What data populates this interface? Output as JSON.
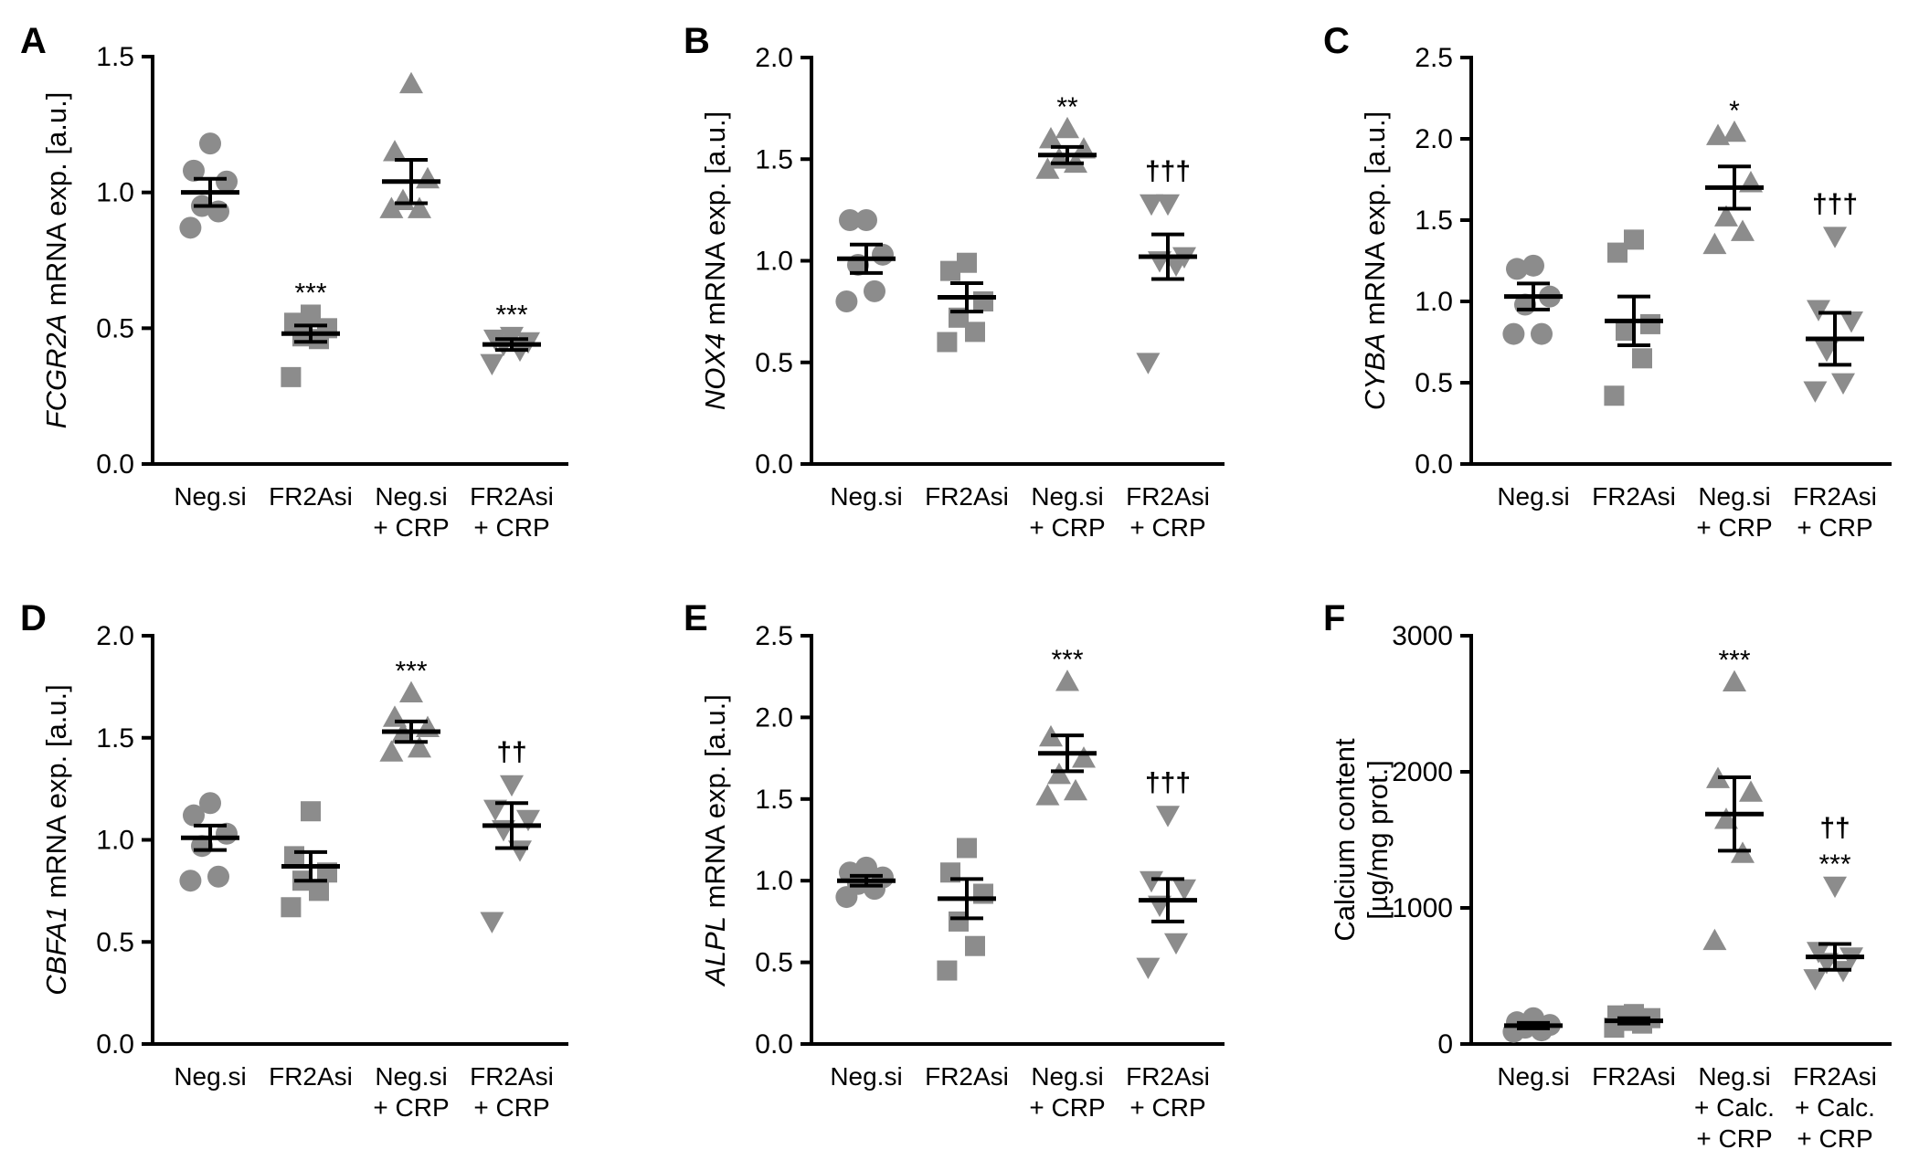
{
  "chart_data": [
    {
      "panel": "A",
      "type": "scatter",
      "ylabel": {
        "gene": "FCGR2A",
        "rest": " mRNA exp. [a.u.]"
      },
      "ylim": [
        0,
        1.5
      ],
      "yticks": [
        "0.0",
        "0.5",
        "1.0",
        "1.5"
      ],
      "categories": [
        [
          "Neg.si"
        ],
        [
          "FR2Asi"
        ],
        [
          "Neg.si",
          "+ CRP"
        ],
        [
          "FR2Asi",
          "+ CRP"
        ]
      ],
      "groups": [
        {
          "marker": "circle",
          "points": [
            1.18,
            1.08,
            1.04,
            0.95,
            0.93,
            0.87
          ],
          "mean": 1.0,
          "sem": 0.05,
          "sig": ""
        },
        {
          "marker": "square",
          "points": [
            0.55,
            0.52,
            0.5,
            0.47,
            0.46,
            0.32
          ],
          "mean": 0.48,
          "sem": 0.03,
          "sig": "***"
        },
        {
          "marker": "triangle-up",
          "points": [
            1.4,
            1.15,
            1.05,
            0.97,
            0.94,
            0.94
          ],
          "mean": 1.04,
          "sem": 0.08,
          "sig": ""
        },
        {
          "marker": "triangle-down",
          "points": [
            0.47,
            0.46,
            0.45,
            0.44,
            0.42,
            0.37
          ],
          "mean": 0.44,
          "sem": 0.02,
          "sig": "***"
        }
      ]
    },
    {
      "panel": "B",
      "type": "scatter",
      "ylabel": {
        "gene": "NOX4",
        "rest": " mRNA exp. [a.u.]"
      },
      "ylim": [
        0,
        2.0
      ],
      "yticks": [
        "0.0",
        "0.5",
        "1.0",
        "1.5",
        "2.0"
      ],
      "categories": [
        [
          "Neg.si"
        ],
        [
          "FR2Asi"
        ],
        [
          "Neg.si",
          "+ CRP"
        ],
        [
          "FR2Asi",
          "+ CRP"
        ]
      ],
      "groups": [
        {
          "marker": "circle",
          "points": [
            1.2,
            1.2,
            1.03,
            0.98,
            0.85,
            0.8
          ],
          "mean": 1.01,
          "sem": 0.07,
          "sig": ""
        },
        {
          "marker": "square",
          "points": [
            0.99,
            0.95,
            0.8,
            0.72,
            0.65,
            0.6
          ],
          "mean": 0.82,
          "sem": 0.07,
          "sig": ""
        },
        {
          "marker": "triangle-up",
          "points": [
            1.65,
            1.6,
            1.55,
            1.5,
            1.48,
            1.45
          ],
          "mean": 1.52,
          "sem": 0.04,
          "sig": "**"
        },
        {
          "marker": "triangle-down",
          "points": [
            1.28,
            1.28,
            1.02,
            1.0,
            0.98,
            0.5
          ],
          "mean": 1.02,
          "sem": 0.11,
          "sig": "†††"
        }
      ]
    },
    {
      "panel": "C",
      "type": "scatter",
      "ylabel": {
        "gene": "CYBA",
        "rest": " mRNA exp. [a.u.]"
      },
      "ylim": [
        0,
        2.5
      ],
      "yticks": [
        "0.0",
        "0.5",
        "1.0",
        "1.5",
        "2.0",
        "2.5"
      ],
      "categories": [
        [
          "Neg.si"
        ],
        [
          "FR2Asi"
        ],
        [
          "Neg.si",
          "+ CRP"
        ],
        [
          "FR2Asi",
          "+ CRP"
        ]
      ],
      "groups": [
        {
          "marker": "circle",
          "points": [
            1.22,
            1.2,
            1.03,
            0.98,
            0.8,
            0.8
          ],
          "mean": 1.03,
          "sem": 0.08,
          "sig": ""
        },
        {
          "marker": "square",
          "points": [
            1.38,
            1.3,
            0.86,
            0.82,
            0.65,
            0.42
          ],
          "mean": 0.88,
          "sem": 0.15,
          "sig": ""
        },
        {
          "marker": "triangle-up",
          "points": [
            2.04,
            2.02,
            1.73,
            1.52,
            1.43,
            1.35
          ],
          "mean": 1.7,
          "sem": 0.13,
          "sig": "*"
        },
        {
          "marker": "triangle-down",
          "points": [
            1.4,
            0.95,
            0.88,
            0.7,
            0.5,
            0.45
          ],
          "mean": 0.77,
          "sem": 0.16,
          "sig": "†††"
        }
      ]
    },
    {
      "panel": "D",
      "type": "scatter",
      "ylabel": {
        "gene": "CBFA1",
        "rest": " mRNA exp. [a.u.]"
      },
      "ylim": [
        0,
        2.0
      ],
      "yticks": [
        "0.0",
        "0.5",
        "1.0",
        "1.5",
        "2.0"
      ],
      "categories": [
        [
          "Neg.si"
        ],
        [
          "FR2Asi"
        ],
        [
          "Neg.si",
          "+ CRP"
        ],
        [
          "FR2Asi",
          "+ CRP"
        ]
      ],
      "groups": [
        {
          "marker": "circle",
          "points": [
            1.18,
            1.12,
            1.03,
            0.97,
            0.82,
            0.8
          ],
          "mean": 1.01,
          "sem": 0.06,
          "sig": ""
        },
        {
          "marker": "square",
          "points": [
            1.14,
            0.92,
            0.84,
            0.8,
            0.75,
            0.67
          ],
          "mean": 0.87,
          "sem": 0.07,
          "sig": ""
        },
        {
          "marker": "triangle-up",
          "points": [
            1.72,
            1.6,
            1.55,
            1.52,
            1.45,
            1.43
          ],
          "mean": 1.53,
          "sem": 0.05,
          "sig": "***"
        },
        {
          "marker": "triangle-down",
          "points": [
            1.27,
            1.15,
            1.1,
            1.05,
            0.95,
            0.6
          ],
          "mean": 1.07,
          "sem": 0.11,
          "sig": "††"
        }
      ]
    },
    {
      "panel": "E",
      "type": "scatter",
      "ylabel": {
        "gene": "ALPL",
        "rest": " mRNA exp. [a.u.]"
      },
      "ylim": [
        0,
        2.5
      ],
      "yticks": [
        "0.0",
        "0.5",
        "1.0",
        "1.5",
        "2.0",
        "2.5"
      ],
      "categories": [
        [
          "Neg.si"
        ],
        [
          "FR2Asi"
        ],
        [
          "Neg.si",
          "+ CRP"
        ],
        [
          "FR2Asi",
          "+ CRP"
        ]
      ],
      "groups": [
        {
          "marker": "circle",
          "points": [
            1.08,
            1.05,
            1.02,
            0.98,
            0.95,
            0.9
          ],
          "mean": 1.0,
          "sem": 0.03,
          "sig": ""
        },
        {
          "marker": "square",
          "points": [
            1.2,
            1.05,
            0.92,
            0.75,
            0.6,
            0.45
          ],
          "mean": 0.89,
          "sem": 0.12,
          "sig": ""
        },
        {
          "marker": "triangle-up",
          "points": [
            2.22,
            1.88,
            1.75,
            1.65,
            1.55,
            1.52
          ],
          "mean": 1.78,
          "sem": 0.11,
          "sig": "***"
        },
        {
          "marker": "triangle-down",
          "points": [
            1.4,
            1.0,
            0.95,
            0.85,
            0.62,
            0.47
          ],
          "mean": 0.88,
          "sem": 0.13,
          "sig": "†††"
        }
      ]
    },
    {
      "panel": "F",
      "type": "scatter",
      "ylabel": {
        "gene": "",
        "rest": "Calcium content",
        "rest2": "[µg/mg prot.]"
      },
      "ylim": [
        0,
        3000
      ],
      "yticks": [
        "0",
        "1000",
        "2000",
        "3000"
      ],
      "categories": [
        [
          "Neg.si"
        ],
        [
          "FR2Asi"
        ],
        [
          "Neg.si",
          "+ Calc.",
          "+ CRP"
        ],
        [
          "FR2Asi",
          "+ Calc.",
          "+ CRP"
        ]
      ],
      "groups": [
        {
          "marker": "circle",
          "points": [
            190,
            160,
            140,
            120,
            100,
            90
          ],
          "mean": 135,
          "sem": 20,
          "sig": ""
        },
        {
          "marker": "square",
          "points": [
            220,
            210,
            190,
            170,
            150,
            120
          ],
          "mean": 170,
          "sem": 20,
          "sig": ""
        },
        {
          "marker": "triangle-up",
          "points": [
            2660,
            1950,
            1850,
            1650,
            1400,
            760
          ],
          "mean": 1690,
          "sem": 270,
          "sig": "***"
        },
        {
          "marker": "triangle-down",
          "points": [
            1160,
            680,
            640,
            600,
            540,
            480
          ],
          "mean": 640,
          "sem": 95,
          "sig": "***",
          "sig2": "††"
        }
      ]
    }
  ]
}
